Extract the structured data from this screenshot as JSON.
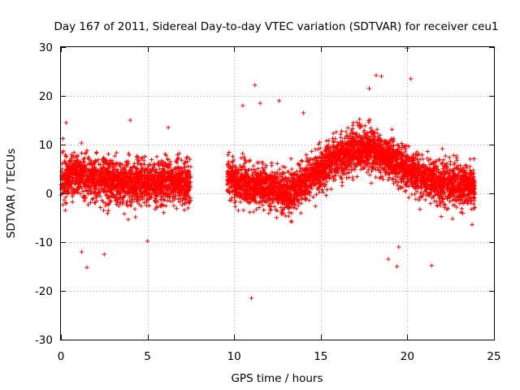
{
  "chart_data": {
    "type": "scatter",
    "title": "Day 167 of 2011, Sidereal Day-to-day VTEC variation (SDTVAR) for receiver ceu1",
    "xlabel": "GPS time / hours",
    "ylabel": "SDTVAR / TECUs",
    "xlim": [
      0,
      25
    ],
    "ylim": [
      -30,
      30
    ],
    "x_ticks": [
      0,
      5,
      10,
      15,
      20,
      25
    ],
    "y_ticks": [
      -30,
      -20,
      -10,
      0,
      10,
      20,
      30
    ],
    "x_tick_labels": [
      "0",
      "5",
      "10",
      "15",
      "20",
      "25"
    ],
    "y_tick_labels": [
      "-30",
      "-20",
      "-10",
      "0",
      "10",
      "20",
      "30"
    ],
    "grid": true,
    "marker": "+",
    "series_color": "#ff0000",
    "series": [
      {
        "name": "SDTVAR",
        "segments": [
          {
            "x_start": 0.0,
            "x_end": 7.5,
            "center": [
              [
                0,
                3
              ],
              [
                1,
                4
              ],
              [
                2,
                3
              ],
              [
                3,
                2.5
              ],
              [
                4,
                2
              ],
              [
                5,
                2
              ],
              [
                6,
                2.5
              ],
              [
                7.5,
                2
              ]
            ],
            "spread": 5.5
          },
          {
            "x_start": 9.6,
            "x_end": 23.9,
            "center": [
              [
                9.6,
                3
              ],
              [
                11,
                1.5
              ],
              [
                12,
                1
              ],
              [
                13,
                0
              ],
              [
                14,
                2
              ],
              [
                15,
                5
              ],
              [
                16,
                7.5
              ],
              [
                17,
                9
              ],
              [
                18,
                9
              ],
              [
                19,
                7
              ],
              [
                20,
                5
              ],
              [
                21,
                3
              ],
              [
                22,
                2
              ],
              [
                23,
                1.5
              ],
              [
                23.9,
                1.5
              ]
            ],
            "spread": 5
          }
        ],
        "outliers": [
          [
            20.0,
            29.8
          ],
          [
            20.2,
            23.5
          ],
          [
            11.2,
            22.2
          ],
          [
            12.6,
            19.0
          ],
          [
            11.5,
            18.5
          ],
          [
            18.2,
            24.2
          ],
          [
            18.5,
            24.0
          ],
          [
            17.8,
            21.5
          ],
          [
            10.5,
            18.0
          ],
          [
            11.0,
            -21.5
          ],
          [
            21.4,
            -14.8
          ],
          [
            19.4,
            -15.0
          ],
          [
            18.9,
            -13.5
          ],
          [
            1.5,
            -15.2
          ],
          [
            1.2,
            -12.0
          ],
          [
            2.5,
            -12.5
          ],
          [
            5.0,
            -9.8
          ],
          [
            0.3,
            14.5
          ],
          [
            6.2,
            13.5
          ],
          [
            4.0,
            15.0
          ],
          [
            14.0,
            16.5
          ],
          [
            19.5,
            -11.0
          ]
        ]
      }
    ]
  }
}
